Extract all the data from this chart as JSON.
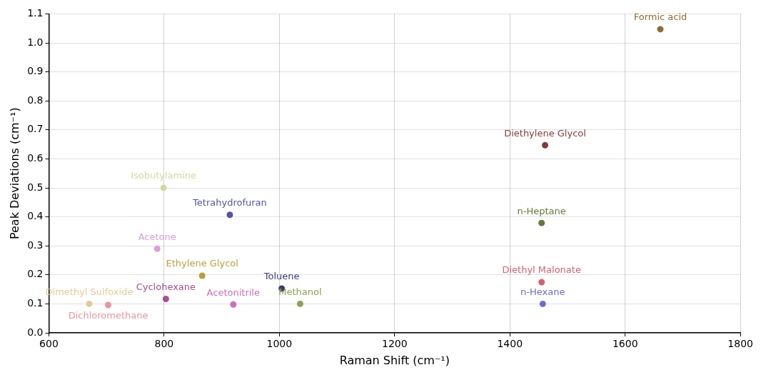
{
  "chart_data": {
    "type": "scatter",
    "xlabel": "Raman Shift (cm⁻¹)",
    "ylabel": "Peak Deviations (cm⁻¹)",
    "xlim": [
      600,
      1800
    ],
    "xticks": [
      600,
      800,
      1000,
      1200,
      1400,
      1600,
      1800
    ],
    "ylim": [
      0,
      1.1
    ],
    "yticks": [
      {
        "value": 0,
        "label": "0.0"
      },
      0.1,
      0.2,
      0.3,
      0.4,
      0.5,
      0.6,
      0.7,
      0.8,
      0.9,
      {
        "value": 1,
        "label": "1.0"
      },
      1.1
    ],
    "grid": true,
    "legend": false,
    "marker": "circle",
    "series": [
      {
        "name": "Dimethyl Sulfoxide",
        "color": "#e7cb94",
        "x": [
          670
        ],
        "values": [
          0.1
        ]
      },
      {
        "name": "Dichloromethane",
        "color": "#e7969c",
        "x": [
          703
        ],
        "values": [
          0.096
        ]
      },
      {
        "name": "Cyclohexane",
        "color": "#a55194",
        "x": [
          803
        ],
        "values": [
          0.117
        ]
      },
      {
        "name": "Isobutylamine",
        "color": "#cedb9c",
        "x": [
          799
        ],
        "values": [
          0.5
        ]
      },
      {
        "name": "Acetone",
        "color": "#de9ed6",
        "x": [
          788
        ],
        "values": [
          0.29
        ]
      },
      {
        "name": "Ethylene Glycol",
        "color": "#bd9e39",
        "x": [
          866
        ],
        "values": [
          0.197
        ]
      },
      {
        "name": "Tetrahydrofuran",
        "color": "#5254a3",
        "x": [
          914
        ],
        "values": [
          0.407
        ]
      },
      {
        "name": "Acetonitrile",
        "color": "#ce6dbd",
        "x": [
          920
        ],
        "values": [
          0.098
        ]
      },
      {
        "name": "Toluene",
        "color": "#393b79",
        "x": [
          1004
        ],
        "values": [
          0.153
        ]
      },
      {
        "name": "Methanol",
        "color": "#8ca252",
        "x": [
          1036
        ],
        "values": [
          0.1
        ]
      },
      {
        "name": "n-Heptane",
        "color": "#637939",
        "x": [
          1455
        ],
        "values": [
          0.379
        ]
      },
      {
        "name": "Diethyl Malonate",
        "color": "#d6616b",
        "x": [
          1455
        ],
        "values": [
          0.175
        ]
      },
      {
        "name": "n-Hexane",
        "color": "#6b6ecf",
        "x": [
          1457
        ],
        "values": [
          0.1
        ]
      },
      {
        "name": "Diethylene Glycol",
        "color": "#843c39",
        "x": [
          1461
        ],
        "values": [
          0.647
        ]
      },
      {
        "name": "Formic acid",
        "color": "#8c6d31",
        "x": [
          1661
        ],
        "values": [
          1.047
        ]
      }
    ]
  }
}
